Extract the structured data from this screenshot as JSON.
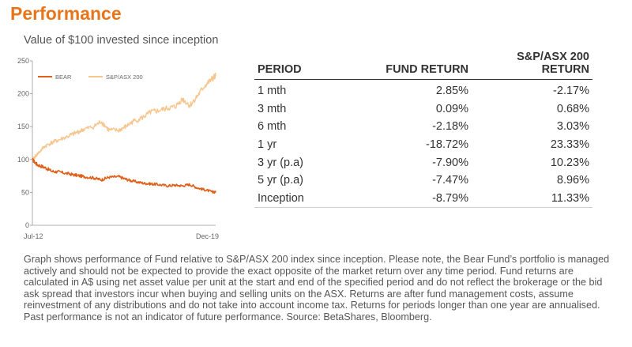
{
  "heading": "Performance",
  "chart_subtitle": "Value of $100 invested since inception",
  "chart_data": {
    "type": "line",
    "title": "Value of $100 invested since inception",
    "xlabel": "",
    "ylabel": "",
    "x_tick_labels": [
      "Jul-12",
      "Dec-19"
    ],
    "xlim": [
      "Jul-12",
      "Dec-19"
    ],
    "ylim": [
      0,
      250
    ],
    "y_ticks": [
      0,
      50,
      100,
      150,
      200,
      250
    ],
    "grid": false,
    "legend_position": "top-left",
    "series": [
      {
        "name": "BEAR",
        "color": "#E0601A",
        "x": [
          2012.5,
          2012.7,
          2013.0,
          2013.3,
          2013.6,
          2014.0,
          2014.3,
          2014.6,
          2015.0,
          2015.3,
          2015.6,
          2016.0,
          2016.3,
          2016.6,
          2017.0,
          2017.3,
          2017.6,
          2018.0,
          2018.3,
          2018.6,
          2018.9,
          2019.2,
          2019.5,
          2019.8,
          2019.95
        ],
        "y": [
          100,
          92,
          88,
          82,
          81,
          78,
          76,
          74,
          72,
          69,
          73,
          74,
          70,
          67,
          64,
          63,
          62,
          60,
          61,
          60,
          62,
          57,
          54,
          51,
          50
        ]
      },
      {
        "name": "S&P/ASX 200",
        "color": "#F6C68E",
        "x": [
          2012.5,
          2012.7,
          2013.0,
          2013.3,
          2013.6,
          2014.0,
          2014.3,
          2014.6,
          2015.0,
          2015.3,
          2015.6,
          2016.0,
          2016.3,
          2016.6,
          2017.0,
          2017.3,
          2017.6,
          2018.0,
          2018.3,
          2018.6,
          2018.9,
          2019.2,
          2019.5,
          2019.8,
          2019.95
        ],
        "y": [
          100,
          108,
          120,
          126,
          130,
          136,
          141,
          146,
          150,
          158,
          145,
          144,
          150,
          158,
          164,
          172,
          174,
          178,
          180,
          192,
          182,
          196,
          212,
          222,
          227
        ]
      }
    ]
  },
  "table": {
    "columns": [
      "PERIOD",
      "FUND RETURN",
      "S&P/ASX 200\nRETURN"
    ],
    "rows": [
      [
        "1 mth",
        "2.85%",
        "-2.17%"
      ],
      [
        "3 mth",
        "0.09%",
        "0.68%"
      ],
      [
        "6 mth",
        "-2.18%",
        "3.03%"
      ],
      [
        "1 yr",
        "-18.72%",
        "23.33%"
      ],
      [
        "3 yr (p.a)",
        "-7.90%",
        "10.23%"
      ],
      [
        "5 yr (p.a)",
        "-7.47%",
        "8.96%"
      ],
      [
        "Inception",
        "-8.79%",
        "11.33%"
      ]
    ]
  },
  "footnote": "Graph shows performance of Fund relative to S&P/ASX 200 index since inception. Please note, the Bear Fund’s portfolio is managed actively and should not be expected to provide the exact opposite of the market return over any time period. Fund returns are calculated in A$ using net asset value per unit at the start and end of the specified period and do not reflect the brokerage or the bid ask spread that investors incur when buying and selling units on the ASX. Returns are after fund management costs, assume reinvestment of any distributions and do not take into account income tax. Returns for periods longer than one year are annualised. Past performance is not an indicator of future performance. Source: BetaShares, Bloomberg.",
  "colors": {
    "heading": "#E8751A",
    "bear": "#E0601A",
    "index": "#F6C68E"
  }
}
